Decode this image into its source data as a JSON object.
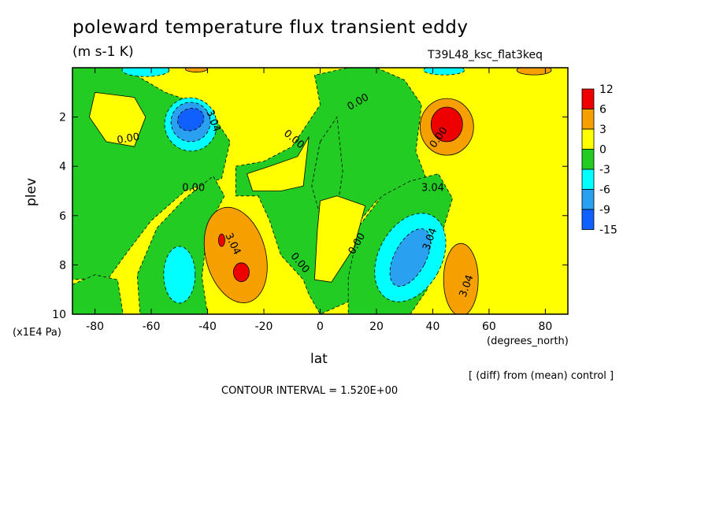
{
  "title": "poleward temperature flux transient eddy",
  "units": "(m s-1 K)",
  "run_name": "T39L48_ksc_flat3keq",
  "comparison_note": "[ (diff) from (mean) control ]",
  "contour_interval": "CONTOUR INTERVAL = 1.520E+00",
  "colors": {
    "red": "#ef0000",
    "orange": "#f5a000",
    "yellow": "#ffff00",
    "green": "#22cc22",
    "cyan": "#00ffff",
    "blue_light": "#2aa0f0",
    "blue_dark": "#1060ff"
  },
  "chart_data": {
    "type": "heatmap",
    "title": "poleward temperature flux transient eddy",
    "xlabel": "lat",
    "x_unit": "(degrees_north)",
    "ylabel": "plev",
    "y_unit": "(x1E4 Pa)",
    "xlim": [
      -88,
      88
    ],
    "ylim": [
      10,
      0
    ],
    "x_ticks": [
      -80,
      -60,
      -40,
      -20,
      0,
      20,
      40,
      60,
      80
    ],
    "x_tick_labels": [
      "-80",
      "-60",
      "-40",
      "-20",
      "0",
      "20",
      "40",
      "60",
      "80"
    ],
    "y_ticks": [
      2,
      4,
      6,
      8,
      10
    ],
    "y_tick_labels": [
      "2",
      "4",
      "6",
      "8",
      "10"
    ],
    "colorbar": {
      "labels": [
        "12",
        "6",
        "3",
        "0",
        "-3",
        "-6",
        "-9",
        "-15"
      ],
      "colors": [
        "#ef0000",
        "#f5a000",
        "#ffff00",
        "#22cc22",
        "#00ffff",
        "#2aa0f0",
        "#1060ff"
      ]
    },
    "contour_labels": [
      "0.00",
      "3.04",
      "0.00",
      "0.00",
      "0.00",
      "3.04",
      "0.00",
      "0.00",
      "3.04",
      "0.00",
      "3.04",
      "3.04"
    ],
    "features": [
      {
        "lat": -45,
        "plev": 2.2,
        "value": -10
      },
      {
        "lat": -30,
        "plev": 7.5,
        "value": 8
      },
      {
        "lat": 45,
        "plev": 2.3,
        "value": 10
      },
      {
        "lat": 33,
        "plev": 7.8,
        "value": -8
      },
      {
        "lat": -50,
        "plev": 8.5,
        "value": -5
      },
      {
        "lat": 50,
        "plev": 8.5,
        "value": 4
      }
    ],
    "grid": false
  }
}
